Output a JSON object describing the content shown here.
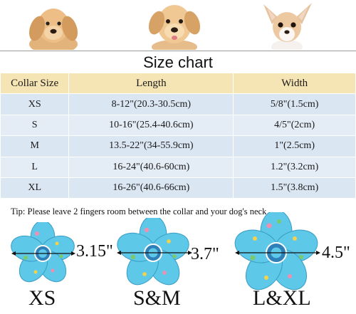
{
  "title": "Size chart",
  "table": {
    "headers": [
      "Collar Size",
      "Length",
      "Width"
    ],
    "rows": [
      [
        "XS",
        "8-12\"(20.3-30.5cm)",
        "5/8\"(1.5cm)"
      ],
      [
        "S",
        "10-16\"(25.4-40.6cm)",
        "4/5\"(2cm)"
      ],
      [
        "M",
        "13.5-22\"(34-55.9cm)",
        "1\"(2.5cm)"
      ],
      [
        "L",
        "16-24\"(40.6-60cm)",
        "1.2\"(3.2cm)"
      ],
      [
        "XL",
        "16-26\"(40.6-66cm)",
        "1.5\"(3.8cm)"
      ]
    ]
  },
  "tip": "Tip: Please leave 2 fingers room between the collar and your dog's neck",
  "flowers": [
    {
      "size_label": "XS",
      "dimension": "3.15\""
    },
    {
      "size_label": "S&M",
      "dimension": "3.7\""
    },
    {
      "size_label": "L&XL",
      "dimension": "4.5\""
    }
  ],
  "colors": {
    "header_bg": "#f6e5b4",
    "row_bg": "#dbe6f3",
    "flower_base": "#5ec8e8",
    "flower_center": "#2f7fb8"
  }
}
